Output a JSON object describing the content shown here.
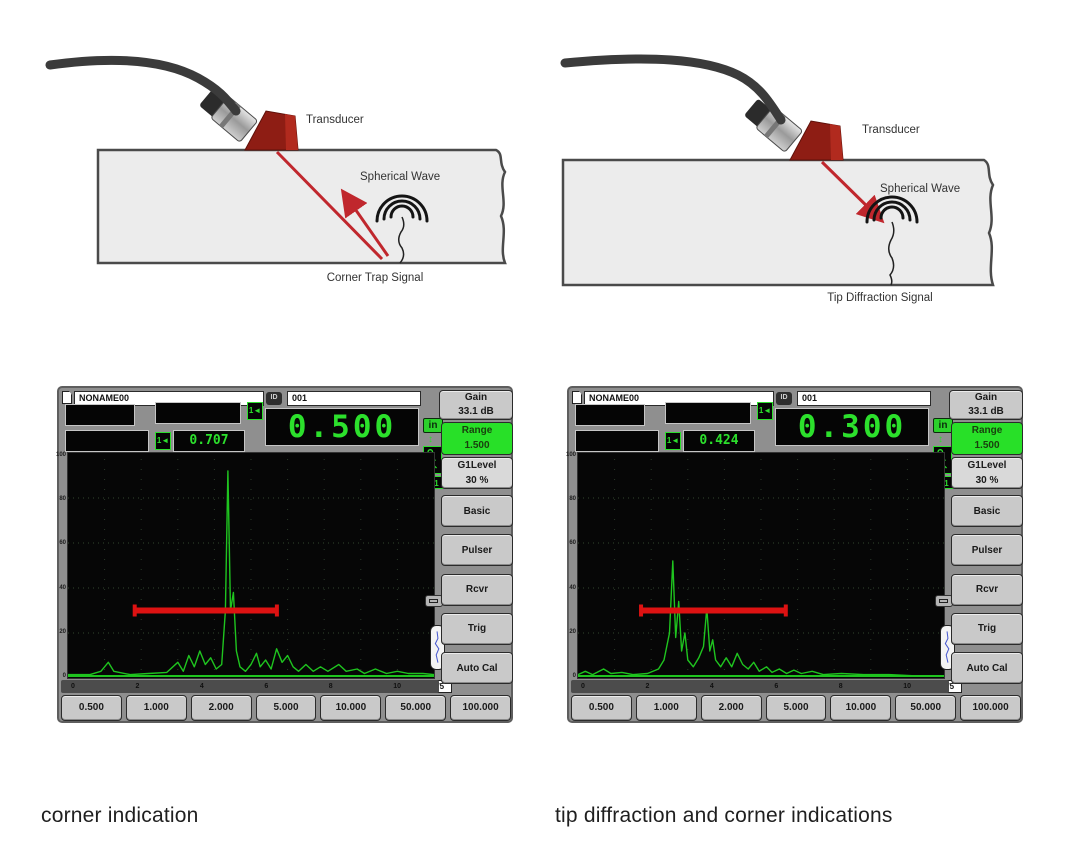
{
  "captions": [
    "corner indication",
    "tip diffraction and corner indications"
  ],
  "diagrams": [
    {
      "transducer_label": "Transducer",
      "wave_label": "Spherical Wave",
      "signal_label": "Corner Trap Signal"
    },
    {
      "transducer_label": "Transducer",
      "wave_label": "Spherical Wave",
      "signal_label": "Tip Diffraction Signal"
    }
  ],
  "colors": {
    "trace": "#1fc41f",
    "gate": "#dd1212",
    "range_active_bg": "#28e028",
    "beam_red": "#c0272d",
    "screen_bg": "#060606"
  },
  "screens": [
    {
      "filename": "NONAME00",
      "id_label": "ID",
      "id_value": "001",
      "gate_tag": "1◄",
      "aux_value": "0.707",
      "main_value": "0.500",
      "unit": "in",
      "updown_icon": "↕",
      "l1_tag": "L1",
      "page": "1/5",
      "gain": {
        "label": "Gain",
        "value": "33.1 dB"
      },
      "range": {
        "label": "Range",
        "value": "1.500"
      },
      "g1": {
        "label": "G1Level",
        "value": "30 %"
      },
      "menu": [
        "Basic",
        "Pulser",
        "Rcvr",
        "Trig",
        "Auto Cal"
      ],
      "bottom_buttons": [
        "0.500",
        "1.000",
        "2.000",
        "5.000",
        "10.000",
        "50.000",
        "100.000"
      ],
      "y_ticks": [
        "100",
        "80",
        "60",
        "40",
        "20",
        "0"
      ],
      "x_ticks": [
        "0",
        "2",
        "4",
        "6",
        "8",
        "10"
      ],
      "gate": {
        "start_pct": 18.5,
        "end_pct": 56.8,
        "level_pct": 30
      },
      "waveform": [
        [
          0,
          1.5
        ],
        [
          6,
          1.5
        ],
        [
          9,
          3
        ],
        [
          11,
          7
        ],
        [
          12.5,
          3
        ],
        [
          17,
          1.5
        ],
        [
          22,
          2
        ],
        [
          27,
          2.5
        ],
        [
          30,
          7
        ],
        [
          31.5,
          3
        ],
        [
          33,
          10
        ],
        [
          34.5,
          5
        ],
        [
          36,
          12
        ],
        [
          37.5,
          6
        ],
        [
          39,
          9
        ],
        [
          40.5,
          4
        ],
        [
          42,
          6
        ],
        [
          43,
          30
        ],
        [
          43.7,
          92
        ],
        [
          44.4,
          30
        ],
        [
          45.2,
          38
        ],
        [
          46,
          12
        ],
        [
          47,
          5
        ],
        [
          48.5,
          3
        ],
        [
          50,
          6
        ],
        [
          51.5,
          11
        ],
        [
          52.5,
          5
        ],
        [
          54,
          8
        ],
        [
          55.5,
          4
        ],
        [
          57,
          13
        ],
        [
          58.5,
          7
        ],
        [
          60,
          10
        ],
        [
          61.5,
          5
        ],
        [
          63,
          3
        ],
        [
          65,
          6
        ],
        [
          67,
          3
        ],
        [
          69,
          5
        ],
        [
          71,
          3
        ],
        [
          74,
          6
        ],
        [
          76,
          3
        ],
        [
          79,
          4
        ],
        [
          81,
          2
        ],
        [
          84,
          4
        ],
        [
          87,
          2
        ],
        [
          90,
          3
        ],
        [
          93,
          2
        ],
        [
          97,
          2
        ],
        [
          100,
          1.5
        ]
      ]
    },
    {
      "filename": "NONAME00",
      "id_label": "ID",
      "id_value": "001",
      "gate_tag": "1◄",
      "aux_value": "0.424",
      "main_value": "0.300",
      "unit": "in",
      "updown_icon": "↕",
      "l1_tag": "L1",
      "page": "1/5",
      "gain": {
        "label": "Gain",
        "value": "33.1 dB"
      },
      "range": {
        "label": "Range",
        "value": "1.500"
      },
      "g1": {
        "label": "G1Level",
        "value": "30 %"
      },
      "menu": [
        "Basic",
        "Pulser",
        "Rcvr",
        "Trig",
        "Auto Cal"
      ],
      "bottom_buttons": [
        "0.500",
        "1.000",
        "2.000",
        "5.000",
        "10.000",
        "50.000",
        "100.000"
      ],
      "y_ticks": [
        "100",
        "80",
        "60",
        "40",
        "20",
        "0"
      ],
      "x_ticks": [
        "0",
        "2",
        "4",
        "6",
        "8",
        "10"
      ],
      "gate": {
        "start_pct": 17.5,
        "end_pct": 56.5,
        "level_pct": 30
      },
      "waveform": [
        [
          0,
          1.5
        ],
        [
          2,
          3
        ],
        [
          4,
          1.5
        ],
        [
          7,
          4
        ],
        [
          9,
          2
        ],
        [
          12,
          2.5
        ],
        [
          15,
          1.5
        ],
        [
          19,
          2
        ],
        [
          22,
          4
        ],
        [
          23.5,
          8
        ],
        [
          25,
          20
        ],
        [
          25.9,
          52
        ],
        [
          26.7,
          18
        ],
        [
          27.5,
          34
        ],
        [
          28.3,
          12
        ],
        [
          29.2,
          20
        ],
        [
          30,
          8
        ],
        [
          31.5,
          5
        ],
        [
          33,
          9
        ],
        [
          34.3,
          14
        ],
        [
          35.2,
          31
        ],
        [
          36,
          12
        ],
        [
          36.8,
          17
        ],
        [
          37.6,
          8
        ],
        [
          39,
          5
        ],
        [
          40.5,
          9
        ],
        [
          42,
          5
        ],
        [
          43.5,
          11
        ],
        [
          45,
          6
        ],
        [
          46.5,
          4
        ],
        [
          48,
          7
        ],
        [
          49.5,
          3
        ],
        [
          51.5,
          5
        ],
        [
          53,
          2.5
        ],
        [
          55,
          4
        ],
        [
          57,
          2
        ],
        [
          59,
          3.5
        ],
        [
          61,
          2
        ],
        [
          64,
          3
        ],
        [
          67,
          1.5
        ],
        [
          72,
          2
        ],
        [
          78,
          1.5
        ],
        [
          85,
          1.5
        ],
        [
          92,
          1
        ],
        [
          100,
          1
        ]
      ]
    }
  ]
}
